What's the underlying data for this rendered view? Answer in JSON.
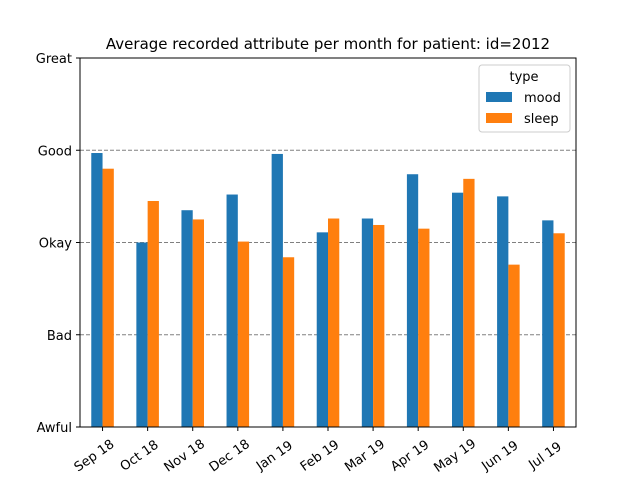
{
  "chart_data": {
    "type": "bar",
    "title": "Average recorded attribute per month for patient: id=2012",
    "xlabel": "",
    "ylabel": "",
    "categories": [
      "Sep 18",
      "Oct 18",
      "Nov 18",
      "Dec 18",
      "Jan 19",
      "Feb 19",
      "Mar 19",
      "Apr 19",
      "May 19",
      "Jun 19",
      "Jul 19"
    ],
    "series": [
      {
        "name": "mood",
        "color": "#1f77b4",
        "values": [
          2.97,
          2.0,
          2.35,
          2.52,
          2.96,
          2.11,
          2.26,
          2.74,
          2.54,
          2.5,
          2.24
        ]
      },
      {
        "name": "sleep",
        "color": "#ff7f0e",
        "values": [
          2.8,
          2.45,
          2.25,
          2.01,
          1.84,
          2.26,
          2.19,
          2.15,
          2.69,
          1.76,
          2.1
        ]
      }
    ],
    "ylim": [
      0,
      4
    ],
    "yticks": [
      {
        "value": 0,
        "label": "Awful"
      },
      {
        "value": 1,
        "label": "Bad"
      },
      {
        "value": 2,
        "label": "Okay"
      },
      {
        "value": 3,
        "label": "Good"
      },
      {
        "value": 4,
        "label": "Great"
      }
    ],
    "grid": "dashed horizontal at Bad, Okay, Good",
    "legend": {
      "title": "type",
      "placement": "top-right"
    }
  }
}
